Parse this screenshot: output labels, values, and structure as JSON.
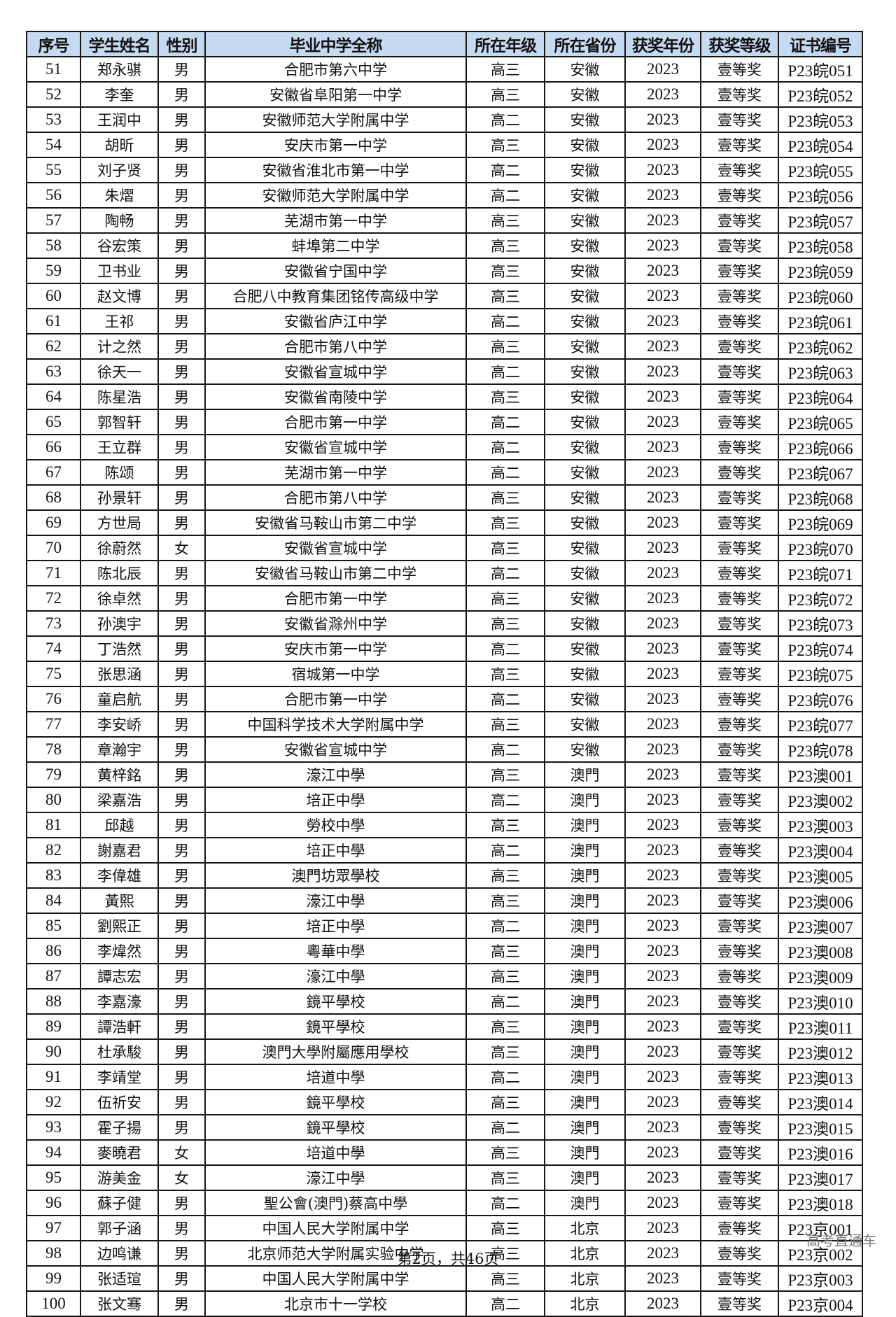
{
  "headers": [
    "序号",
    "学生姓名",
    "性别",
    "毕业中学全称",
    "所在年级",
    "所在省份",
    "获奖年份",
    "获奖等级",
    "证书编号"
  ],
  "rows": [
    [
      "51",
      "郑永骐",
      "男",
      "合肥市第六中学",
      "高三",
      "安徽",
      "2023",
      "壹等奖",
      "P23皖051"
    ],
    [
      "52",
      "李奎",
      "男",
      "安徽省阜阳第一中学",
      "高三",
      "安徽",
      "2023",
      "壹等奖",
      "P23皖052"
    ],
    [
      "53",
      "王润中",
      "男",
      "安徽师范大学附属中学",
      "高二",
      "安徽",
      "2023",
      "壹等奖",
      "P23皖053"
    ],
    [
      "54",
      "胡昕",
      "男",
      "安庆市第一中学",
      "高三",
      "安徽",
      "2023",
      "壹等奖",
      "P23皖054"
    ],
    [
      "55",
      "刘子贤",
      "男",
      "安徽省淮北市第一中学",
      "高二",
      "安徽",
      "2023",
      "壹等奖",
      "P23皖055"
    ],
    [
      "56",
      "朱熠",
      "男",
      "安徽师范大学附属中学",
      "高二",
      "安徽",
      "2023",
      "壹等奖",
      "P23皖056"
    ],
    [
      "57",
      "陶畅",
      "男",
      "芜湖市第一中学",
      "高三",
      "安徽",
      "2023",
      "壹等奖",
      "P23皖057"
    ],
    [
      "58",
      "谷宏策",
      "男",
      "蚌埠第二中学",
      "高三",
      "安徽",
      "2023",
      "壹等奖",
      "P23皖058"
    ],
    [
      "59",
      "卫书业",
      "男",
      "安徽省宁国中学",
      "高三",
      "安徽",
      "2023",
      "壹等奖",
      "P23皖059"
    ],
    [
      "60",
      "赵文博",
      "男",
      "合肥八中教育集团铭传高级中学",
      "高三",
      "安徽",
      "2023",
      "壹等奖",
      "P23皖060"
    ],
    [
      "61",
      "王祁",
      "男",
      "安徽省庐江中学",
      "高二",
      "安徽",
      "2023",
      "壹等奖",
      "P23皖061"
    ],
    [
      "62",
      "计之然",
      "男",
      "合肥市第八中学",
      "高三",
      "安徽",
      "2023",
      "壹等奖",
      "P23皖062"
    ],
    [
      "63",
      "徐天一",
      "男",
      "安徽省宣城中学",
      "高二",
      "安徽",
      "2023",
      "壹等奖",
      "P23皖063"
    ],
    [
      "64",
      "陈星浩",
      "男",
      "安徽省南陵中学",
      "高三",
      "安徽",
      "2023",
      "壹等奖",
      "P23皖064"
    ],
    [
      "65",
      "郭智轩",
      "男",
      "合肥市第一中学",
      "高二",
      "安徽",
      "2023",
      "壹等奖",
      "P23皖065"
    ],
    [
      "66",
      "王立群",
      "男",
      "安徽省宣城中学",
      "高二",
      "安徽",
      "2023",
      "壹等奖",
      "P23皖066"
    ],
    [
      "67",
      "陈颂",
      "男",
      "芜湖市第一中学",
      "高二",
      "安徽",
      "2023",
      "壹等奖",
      "P23皖067"
    ],
    [
      "68",
      "孙景轩",
      "男",
      "合肥市第八中学",
      "高三",
      "安徽",
      "2023",
      "壹等奖",
      "P23皖068"
    ],
    [
      "69",
      "方世局",
      "男",
      "安徽省马鞍山市第二中学",
      "高三",
      "安徽",
      "2023",
      "壹等奖",
      "P23皖069"
    ],
    [
      "70",
      "徐蔚然",
      "女",
      "安徽省宣城中学",
      "高三",
      "安徽",
      "2023",
      "壹等奖",
      "P23皖070"
    ],
    [
      "71",
      "陈北辰",
      "男",
      "安徽省马鞍山市第二中学",
      "高二",
      "安徽",
      "2023",
      "壹等奖",
      "P23皖071"
    ],
    [
      "72",
      "徐卓然",
      "男",
      "合肥市第一中学",
      "高三",
      "安徽",
      "2023",
      "壹等奖",
      "P23皖072"
    ],
    [
      "73",
      "孙澳宇",
      "男",
      "安徽省滁州中学",
      "高三",
      "安徽",
      "2023",
      "壹等奖",
      "P23皖073"
    ],
    [
      "74",
      "丁浩然",
      "男",
      "安庆市第一中学",
      "高二",
      "安徽",
      "2023",
      "壹等奖",
      "P23皖074"
    ],
    [
      "75",
      "张思涵",
      "男",
      "宿城第一中学",
      "高三",
      "安徽",
      "2023",
      "壹等奖",
      "P23皖075"
    ],
    [
      "76",
      "童启航",
      "男",
      "合肥市第一中学",
      "高二",
      "安徽",
      "2023",
      "壹等奖",
      "P23皖076"
    ],
    [
      "77",
      "李安峤",
      "男",
      "中国科学技术大学附属中学",
      "高三",
      "安徽",
      "2023",
      "壹等奖",
      "P23皖077"
    ],
    [
      "78",
      "章瀚宇",
      "男",
      "安徽省宣城中学",
      "高二",
      "安徽",
      "2023",
      "壹等奖",
      "P23皖078"
    ],
    [
      "79",
      "黄梓銘",
      "男",
      "濠江中學",
      "高三",
      "澳門",
      "2023",
      "壹等奖",
      "P23澳001"
    ],
    [
      "80",
      "梁嘉浩",
      "男",
      "培正中學",
      "高二",
      "澳門",
      "2023",
      "壹等奖",
      "P23澳002"
    ],
    [
      "81",
      "邱越",
      "男",
      "勞校中學",
      "高三",
      "澳門",
      "2023",
      "壹等奖",
      "P23澳003"
    ],
    [
      "82",
      "謝嘉君",
      "男",
      "培正中學",
      "高二",
      "澳門",
      "2023",
      "壹等奖",
      "P23澳004"
    ],
    [
      "83",
      "李偉雄",
      "男",
      "澳門坊眾學校",
      "高三",
      "澳門",
      "2023",
      "壹等奖",
      "P23澳005"
    ],
    [
      "84",
      "黃熙",
      "男",
      "濠江中學",
      "高三",
      "澳門",
      "2023",
      "壹等奖",
      "P23澳006"
    ],
    [
      "85",
      "劉熙正",
      "男",
      "培正中學",
      "高二",
      "澳門",
      "2023",
      "壹等奖",
      "P23澳007"
    ],
    [
      "86",
      "李煒然",
      "男",
      "粵華中學",
      "高三",
      "澳門",
      "2023",
      "壹等奖",
      "P23澳008"
    ],
    [
      "87",
      "譚志宏",
      "男",
      "濠江中學",
      "高三",
      "澳門",
      "2023",
      "壹等奖",
      "P23澳009"
    ],
    [
      "88",
      "李嘉濠",
      "男",
      "鏡平學校",
      "高二",
      "澳門",
      "2023",
      "壹等奖",
      "P23澳010"
    ],
    [
      "89",
      "譚浩軒",
      "男",
      "鏡平學校",
      "高三",
      "澳門",
      "2023",
      "壹等奖",
      "P23澳011"
    ],
    [
      "90",
      "杜承駿",
      "男",
      "澳門大學附屬應用學校",
      "高三",
      "澳門",
      "2023",
      "壹等奖",
      "P23澳012"
    ],
    [
      "91",
      "李靖堂",
      "男",
      "培道中學",
      "高二",
      "澳門",
      "2023",
      "壹等奖",
      "P23澳013"
    ],
    [
      "92",
      "伍祈安",
      "男",
      "鏡平學校",
      "高三",
      "澳門",
      "2023",
      "壹等奖",
      "P23澳014"
    ],
    [
      "93",
      "霍子揚",
      "男",
      "鏡平學校",
      "高二",
      "澳門",
      "2023",
      "壹等奖",
      "P23澳015"
    ],
    [
      "94",
      "麥曉君",
      "女",
      "培道中學",
      "高三",
      "澳門",
      "2023",
      "壹等奖",
      "P23澳016"
    ],
    [
      "95",
      "游美金",
      "女",
      "濠江中學",
      "高三",
      "澳門",
      "2023",
      "壹等奖",
      "P23澳017"
    ],
    [
      "96",
      "蘇子健",
      "男",
      "聖公會(澳門)蔡高中學",
      "高二",
      "澳門",
      "2023",
      "壹等奖",
      "P23澳018"
    ],
    [
      "97",
      "郭子涵",
      "男",
      "中国人民大学附属中学",
      "高三",
      "北京",
      "2023",
      "壹等奖",
      "P23京001"
    ],
    [
      "98",
      "边鸣谦",
      "男",
      "北京师范大学附属实验中学",
      "高三",
      "北京",
      "2023",
      "壹等奖",
      "P23京002"
    ],
    [
      "99",
      "张适瑄",
      "男",
      "中国人民大学附属中学",
      "高三",
      "北京",
      "2023",
      "壹等奖",
      "P23京003"
    ],
    [
      "100",
      "张文骞",
      "男",
      "北京市十一学校",
      "高二",
      "北京",
      "2023",
      "壹等奖",
      "P23京004"
    ]
  ],
  "footer": {
    "page_label": "第2页，共46页",
    "brand": "高考直通车"
  },
  "colors": {
    "header_bg": "#c5d9f1"
  }
}
